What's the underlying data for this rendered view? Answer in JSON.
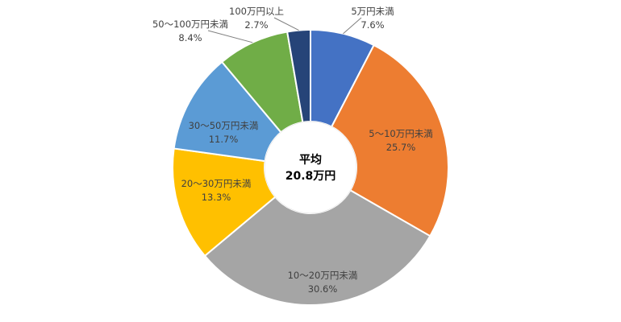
{
  "chart_data": {
    "type": "donut",
    "categories": [
      "5万円未満",
      "5～10万円未満",
      "10～20万円未満",
      "20～30万円未満",
      "30～50万円未満",
      "50～100万円未満",
      "100万円以上"
    ],
    "values": [
      7.6,
      25.7,
      30.6,
      13.3,
      11.7,
      8.4,
      2.7
    ],
    "value_labels": [
      "7.6%",
      "25.7%",
      "30.6%",
      "13.3%",
      "11.7%",
      "8.4%",
      "2.7%"
    ],
    "colors": [
      "#4472C4",
      "#ED7D31",
      "#A5A5A5",
      "#FFC000",
      "#5B9BD5",
      "#70AD47",
      "#264478"
    ],
    "center_label": {
      "line1": "平均",
      "line2": "20.8万円"
    },
    "direction": "clockwise",
    "start_angle": "12 o'clock",
    "legend": "none"
  }
}
